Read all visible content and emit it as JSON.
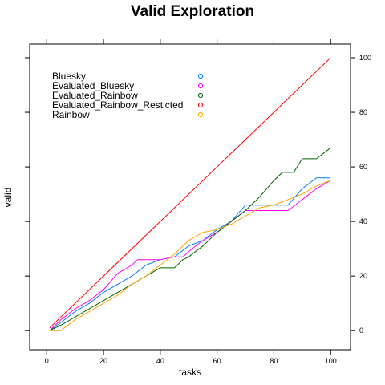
{
  "chart_data": {
    "type": "line",
    "title": "Valid Exploration",
    "xlabel": "tasks",
    "ylabel": "valid",
    "xlim": [
      -6,
      107
    ],
    "ylim": [
      -7,
      105
    ],
    "xticks": [
      0,
      20,
      40,
      60,
      80,
      100
    ],
    "yticks": [
      0,
      20,
      40,
      60,
      80,
      100
    ],
    "legend_position": "top-left",
    "series": [
      {
        "name": "Bluesky",
        "color": "#0080ff",
        "x": [
          1,
          5,
          10,
          15,
          20,
          25,
          30,
          35,
          40,
          45,
          50,
          55,
          60,
          65,
          70,
          75,
          80,
          85,
          90,
          95,
          100
        ],
        "y": [
          0,
          3,
          7,
          10,
          14,
          17,
          20,
          24,
          26,
          27,
          31,
          33,
          37,
          40,
          46,
          46,
          46,
          46,
          52,
          56,
          56
        ]
      },
      {
        "name": "Evaluated_Bluesky",
        "color": "#ff00ff",
        "x": [
          1,
          5,
          10,
          15,
          20,
          25,
          30,
          32,
          35,
          40,
          45,
          48,
          50,
          55,
          60,
          65,
          70,
          75,
          80,
          85,
          90,
          95,
          100
        ],
        "y": [
          0,
          4,
          8,
          11,
          15,
          21,
          24,
          26,
          26,
          26,
          27,
          27,
          29,
          33,
          36,
          40,
          44,
          44,
          44,
          44,
          48,
          52,
          55
        ]
      },
      {
        "name": "Evaluated_Rainbow",
        "color": "#006400",
        "x": [
          1,
          5,
          10,
          15,
          20,
          25,
          30,
          35,
          40,
          45,
          48,
          50,
          55,
          60,
          65,
          70,
          75,
          80,
          83,
          87,
          90,
          95,
          100
        ],
        "y": [
          0,
          2,
          5,
          8,
          11,
          14,
          17,
          20,
          23,
          23,
          26,
          27,
          31,
          36,
          40,
          44,
          49,
          55,
          58,
          58,
          63,
          63,
          67
        ]
      },
      {
        "name": "Evaluated_Rainbow_Resticted",
        "color": "#ff0000",
        "x": [
          1,
          100
        ],
        "y": [
          1,
          100
        ]
      },
      {
        "name": "Rainbow",
        "color": "#ffa500",
        "x": [
          1,
          5,
          10,
          15,
          20,
          25,
          30,
          35,
          40,
          45,
          50,
          55,
          60,
          65,
          70,
          75,
          80,
          85,
          90,
          95,
          100
        ],
        "y": [
          0,
          0,
          4,
          7,
          10,
          13,
          17,
          20,
          24,
          28,
          33,
          36,
          37,
          39,
          42,
          45,
          46,
          48,
          50,
          53,
          55
        ]
      }
    ]
  }
}
